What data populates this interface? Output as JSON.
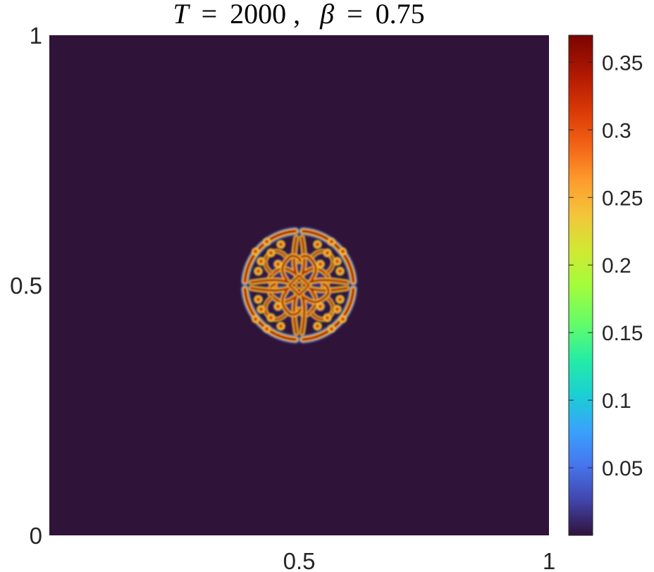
{
  "chart_data": {
    "type": "heatmap",
    "title": {
      "t_symbol": "T",
      "t_value": "2000",
      "separator": ",",
      "beta_symbol": "β",
      "beta_value": "0.75",
      "equals": "="
    },
    "xlim": [
      0,
      1
    ],
    "ylim": [
      0,
      1
    ],
    "x_ticks": [
      {
        "value": 0.5,
        "label": "0.5"
      },
      {
        "value": 1,
        "label": "1"
      }
    ],
    "y_ticks": [
      {
        "value": 0,
        "label": "0"
      },
      {
        "value": 0.5,
        "label": "0.5"
      },
      {
        "value": 1,
        "label": "1"
      }
    ],
    "colorbar": {
      "colormap": "turbo",
      "range": [
        0,
        0.37
      ],
      "ticks": [
        {
          "value": 0.05,
          "label": "0.05"
        },
        {
          "value": 0.1,
          "label": "0.1"
        },
        {
          "value": 0.15,
          "label": "0.15"
        },
        {
          "value": 0.2,
          "label": "0.2"
        },
        {
          "value": 0.25,
          "label": "0.25"
        },
        {
          "value": 0.3,
          "label": "0.3"
        },
        {
          "value": 0.35,
          "label": "0.35"
        }
      ]
    },
    "background_value": 0.0,
    "pattern": {
      "center": [
        0.5,
        0.5
      ],
      "outer_radius": 0.12,
      "symmetry": "four-fold",
      "max_value": 0.37
    }
  },
  "colors": {
    "background": "#2f1339",
    "peak": "#7a0403"
  }
}
